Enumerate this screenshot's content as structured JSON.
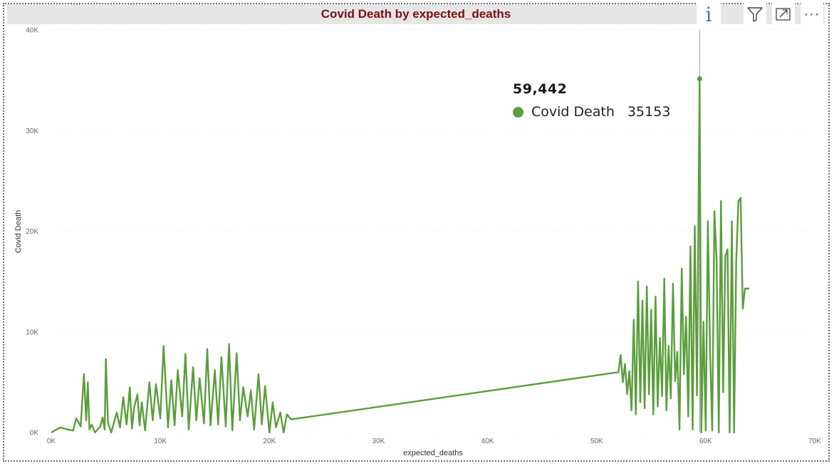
{
  "visual": {
    "title": "Covid Death by expected_deaths",
    "toolbar": {
      "info_icon": "info-icon",
      "filter_icon": "filter-icon",
      "focus_icon": "focus-mode-icon",
      "more_icon": "more-options-icon"
    },
    "colors": {
      "series": "#5a9e3c",
      "title": "#7a1010",
      "title_bar": "#e6e6e6"
    }
  },
  "tooltip": {
    "x_label": "59,442",
    "series_name": "Covid Death",
    "value": "35153"
  },
  "chart_data": {
    "type": "line",
    "title": "Covid Death by expected_deaths",
    "xlabel": "expected_deaths",
    "ylabel": "Covid Death",
    "xlim": [
      0,
      70000
    ],
    "ylim": [
      0,
      40000
    ],
    "x_ticks": [
      "0K",
      "10K",
      "20K",
      "30K",
      "40K",
      "50K",
      "60K",
      "70K"
    ],
    "y_ticks": [
      "0K",
      "10K",
      "20K",
      "30K",
      "40K"
    ],
    "grid": true,
    "legend": "none",
    "series": [
      {
        "name": "Covid Death",
        "color": "#5a9e3c",
        "x": [
          0,
          800,
          1500,
          2000,
          2300,
          2700,
          3000,
          3200,
          3350,
          3500,
          3700,
          4000,
          4500,
          4700,
          4900,
          5000,
          5200,
          5500,
          6000,
          6300,
          6600,
          6900,
          7200,
          7400,
          7600,
          7900,
          8100,
          8300,
          8600,
          9000,
          9300,
          9600,
          10000,
          10300,
          10700,
          11000,
          11300,
          11600,
          12000,
          12300,
          12600,
          13000,
          13300,
          13600,
          14000,
          14300,
          14600,
          15000,
          15300,
          15600,
          16000,
          16300,
          16600,
          17000,
          17300,
          17600,
          18000,
          18300,
          18600,
          19000,
          19300,
          19600,
          20000,
          20300,
          20600,
          21000,
          21300,
          21600,
          22000,
          52000,
          52200,
          52400,
          52600,
          52800,
          53000,
          53200,
          53400,
          53600,
          53800,
          54000,
          54200,
          54400,
          54600,
          54800,
          55000,
          55200,
          55400,
          55600,
          55800,
          56000,
          56200,
          56400,
          56600,
          56800,
          57000,
          57200,
          57400,
          57600,
          57800,
          58000,
          58200,
          58400,
          58600,
          58800,
          59000,
          59200,
          59442,
          59600,
          59800,
          60000,
          60200,
          60400,
          60600,
          60800,
          61000,
          61200,
          61400,
          61600,
          61800,
          62000,
          62200,
          62400,
          62600,
          62800,
          63000,
          63200,
          63400,
          63600,
          63800,
          64000
        ],
        "y": [
          0,
          500,
          300,
          200,
          1400,
          600,
          5800,
          1200,
          5000,
          300,
          800,
          0,
          600,
          1500,
          300,
          7300,
          1000,
          0,
          2000,
          500,
          3500,
          800,
          4500,
          400,
          2500,
          3800,
          700,
          3000,
          200,
          5000,
          1200,
          4800,
          1400,
          8600,
          500,
          5200,
          700,
          6200,
          1600,
          7800,
          300,
          6500,
          1200,
          5400,
          900,
          8300,
          700,
          6200,
          800,
          7500,
          600,
          8800,
          200,
          7900,
          1200,
          4500,
          1600,
          4200,
          300,
          5800,
          800,
          4600,
          0,
          3000,
          500,
          2000,
          0,
          1800,
          1300,
          6000,
          7700,
          5000,
          6800,
          3800,
          6100,
          2200,
          11200,
          1800,
          15000,
          3000,
          13100,
          2400,
          14500,
          3800,
          12200,
          1800,
          13500,
          2600,
          9400,
          3600,
          15300,
          2200,
          8600,
          3400,
          14800,
          5100,
          8000,
          300,
          16300,
          5800,
          11500,
          1600,
          18500,
          300,
          20500,
          3700,
          35153,
          0,
          11000,
          200,
          21000,
          8000,
          200,
          22000,
          17000,
          0,
          23000,
          4000,
          17500,
          18200,
          0,
          21000,
          0,
          17000,
          23000,
          23300,
          12300,
          14300,
          14300,
          14300
        ]
      }
    ],
    "hover": {
      "x": 59442,
      "y": 35153
    }
  }
}
